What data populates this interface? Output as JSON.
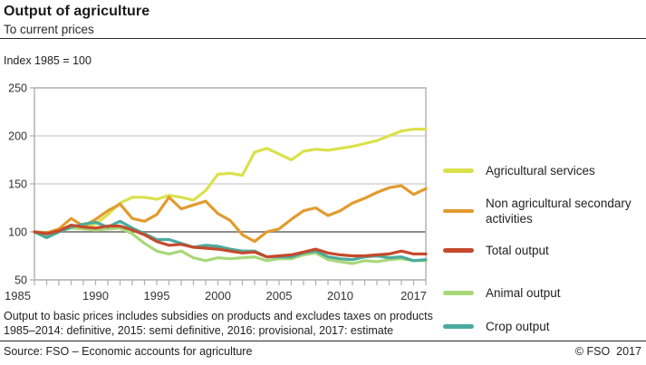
{
  "header": {
    "title": "Output of agriculture",
    "subtitle": "To current prices",
    "index_label": "Index 1985 = 100"
  },
  "chart_data": {
    "type": "line",
    "title": "Output of agriculture",
    "subtitle": "To current prices",
    "ylabel": "Index 1985 = 100",
    "ylim": [
      50,
      250
    ],
    "y_ticks": [
      50,
      100,
      150,
      200,
      250
    ],
    "reference_line": 100,
    "grid": true,
    "legend_position": "right",
    "x": [
      1985,
      1986,
      1987,
      1988,
      1989,
      1990,
      1991,
      1992,
      1993,
      1994,
      1995,
      1996,
      1997,
      1998,
      1999,
      2000,
      2001,
      2002,
      2003,
      2004,
      2005,
      2006,
      2007,
      2008,
      2009,
      2010,
      2011,
      2012,
      2013,
      2014,
      2015,
      2016,
      2017
    ],
    "x_tick_labels": [
      1985,
      1990,
      1995,
      2000,
      2005,
      2010,
      2017
    ],
    "series": [
      {
        "name": "Agricultural services",
        "color": "#dbe14b",
        "values": [
          100,
          98,
          102,
          106,
          104,
          108,
          118,
          130,
          136,
          136,
          134,
          138,
          136,
          133,
          143,
          160,
          161,
          159,
          183,
          187,
          181,
          175,
          184,
          186,
          185,
          187,
          189,
          192,
          195,
          200,
          205,
          207,
          207
        ]
      },
      {
        "name": "Non agricultural secondary activities",
        "color": "#e29b2e",
        "values": [
          100,
          99,
          103,
          114,
          106,
          113,
          122,
          129,
          114,
          111,
          118,
          136,
          124,
          128,
          132,
          119,
          112,
          97,
          90,
          100,
          103,
          113,
          122,
          125,
          117,
          122,
          130,
          135,
          141,
          146,
          148,
          139,
          145
        ]
      },
      {
        "name": "Total output",
        "color": "#c54a2c",
        "values": [
          100,
          98,
          101,
          107,
          105,
          104,
          106,
          106,
          102,
          97,
          90,
          86,
          87,
          84,
          83,
          82,
          80,
          78,
          79,
          74,
          75,
          76,
          79,
          82,
          78,
          76,
          75,
          75,
          76,
          77,
          80,
          77,
          77
        ]
      },
      {
        "name": "Animal output",
        "color": "#a8d878",
        "values": [
          100,
          97,
          101,
          104,
          103,
          102,
          103,
          104,
          98,
          88,
          80,
          77,
          80,
          73,
          70,
          73,
          72,
          73,
          74,
          70,
          72,
          72,
          76,
          78,
          71,
          69,
          67,
          70,
          69,
          71,
          72,
          70,
          70
        ]
      },
      {
        "name": "Crop output",
        "color": "#4aaa9e",
        "values": [
          100,
          94,
          100,
          105,
          108,
          110,
          105,
          111,
          104,
          98,
          92,
          92,
          88,
          84,
          86,
          85,
          82,
          80,
          80,
          74,
          74,
          74,
          78,
          80,
          74,
          72,
          71,
          74,
          75,
          73,
          74,
          70,
          71
        ]
      }
    ],
    "colors": {
      "gridline": "#cccccc",
      "reference_line": "#8c8c8c",
      "plot_border": "#b3b3b3",
      "tick": "#b3b3b3"
    }
  },
  "footnotes": [
    "Output to basic prices includes subsidies on products and excludes taxes on products",
    "1985–2014: definitive, 2015: semi definitive, 2016: provisional, 2017: estimate"
  ],
  "source": "Source: FSO – Economic accounts for agriculture",
  "copyright": "© FSO  2017"
}
